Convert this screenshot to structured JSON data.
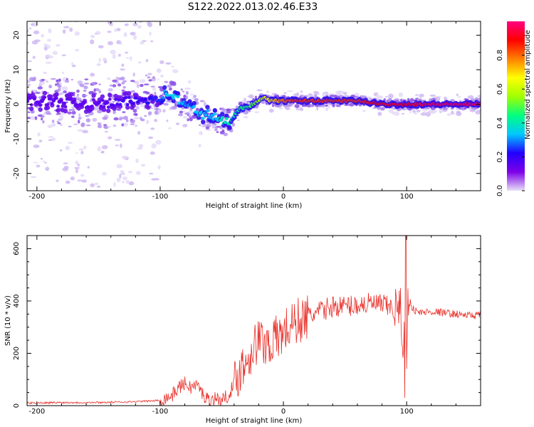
{
  "title": "S122.2022.013.02.46.E33",
  "chart_data": [
    {
      "type": "heatmap",
      "xlabel": "Height of straight line (km)",
      "ylabel": "Frequency (Hz)",
      "xlim": [
        -208,
        160
      ],
      "ylim": [
        -25,
        24
      ],
      "xticks": [
        -200,
        -100,
        0,
        100
      ],
      "yticks": [
        -20,
        -10,
        0,
        10,
        20
      ],
      "ridge": {
        "x": [
          -200,
          -150,
          -120,
          -100,
          -95,
          -90,
          -85,
          -80,
          -75,
          -70,
          -65,
          -60,
          -55,
          -50,
          -45,
          -40,
          -35,
          -30,
          -25,
          -20,
          -15,
          -10,
          -5,
          0,
          10,
          20,
          40,
          60,
          80,
          100,
          120,
          140,
          160
        ],
        "freq_hz": [
          1,
          0,
          1,
          2,
          3,
          3,
          1,
          0,
          -1,
          -2,
          -3,
          -3,
          -4,
          -5,
          -5,
          -3,
          -1,
          -1,
          0,
          1,
          2,
          1,
          1,
          1,
          1,
          1,
          1,
          1,
          0,
          0,
          0,
          0,
          0
        ],
        "amplitude": [
          0.15,
          0.15,
          0.2,
          0.25,
          0.35,
          0.35,
          0.35,
          0.3,
          0.3,
          0.35,
          0.35,
          0.3,
          0.35,
          0.4,
          0.4,
          0.4,
          0.45,
          0.45,
          0.5,
          0.55,
          0.65,
          0.7,
          0.75,
          0.8,
          0.85,
          0.85,
          0.85,
          0.85,
          0.9,
          0.9,
          0.95,
          0.95,
          0.95
        ]
      },
      "colorbar": {
        "label": "Normalized spectral amplitude",
        "range": [
          0,
          1
        ],
        "ticks": [
          "0.0",
          "0.2",
          "0.4",
          "0.6",
          "0.8"
        ],
        "colors": [
          "#e8e0f8",
          "#7e00e8",
          "#2200ff",
          "#00c8ff",
          "#00ff80",
          "#a0ff00",
          "#ffff00",
          "#ff8000",
          "#ff0000",
          "#ff0080"
        ]
      }
    },
    {
      "type": "line",
      "xlabel": "Height of straight line (km)",
      "ylabel": "SNR (10 * v/v)",
      "xlim": [
        -208,
        160
      ],
      "ylim": [
        0,
        650
      ],
      "xticks": [
        -200,
        -100,
        0,
        100
      ],
      "yticks": [
        0,
        200,
        400,
        600
      ],
      "color": "#e8302a",
      "x": [
        -208,
        -180,
        -150,
        -120,
        -100,
        -90,
        -85,
        -80,
        -75,
        -70,
        -65,
        -60,
        -55,
        -50,
        -45,
        -40,
        -35,
        -30,
        -25,
        -20,
        -15,
        -10,
        -5,
        0,
        10,
        20,
        30,
        40,
        50,
        60,
        70,
        80,
        90,
        95,
        97,
        99,
        100,
        101,
        103,
        105,
        110,
        120,
        130,
        140,
        150,
        160
      ],
      "y": [
        10,
        12,
        12,
        15,
        20,
        40,
        70,
        85,
        70,
        80,
        40,
        20,
        30,
        20,
        40,
        80,
        140,
        170,
        220,
        250,
        240,
        240,
        260,
        280,
        320,
        340,
        360,
        380,
        380,
        385,
        390,
        385,
        370,
        360,
        260,
        330,
        80,
        380,
        400,
        370,
        355,
        360,
        355,
        350,
        345,
        345
      ]
    }
  ]
}
